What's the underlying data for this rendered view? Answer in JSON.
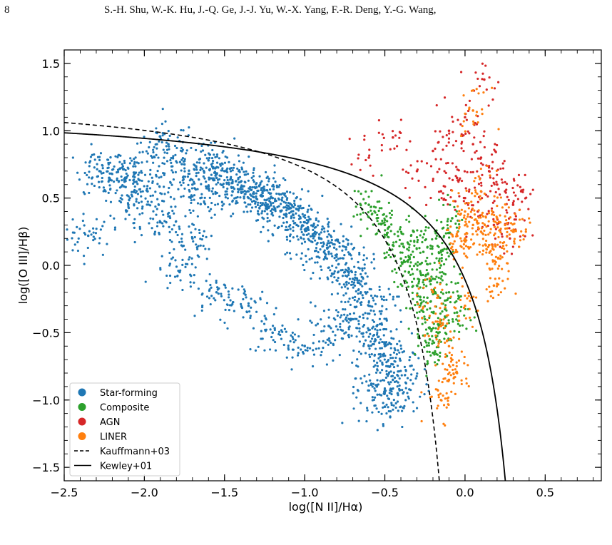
{
  "page": {
    "page_number": "8",
    "running_head": "S.-H. Shu, W.-K. Hu, J.-Q. Ge, J.-J. Yu, W.-X. Yang, F.-R. Deng, Y.-G. Wang,"
  },
  "chart_data": {
    "type": "scatter",
    "title": "",
    "xlabel": "log([N II]/Hα)",
    "ylabel": "log([O III]/Hβ)",
    "xlim": [
      -2.5,
      0.85
    ],
    "ylim": [
      -1.6,
      1.6
    ],
    "xticks": [
      -2.5,
      -2.0,
      -1.5,
      -1.0,
      -0.5,
      0.0,
      0.5
    ],
    "xtick_labels": [
      "−2.5",
      "−2.0",
      "−1.5",
      "−1.0",
      "−0.5",
      "0.0",
      "0.5"
    ],
    "yticks": [
      -1.5,
      -1.0,
      -0.5,
      0.0,
      0.5,
      1.0,
      1.5
    ],
    "ytick_labels": [
      "−1.5",
      "−1.0",
      "−0.5",
      "0.0",
      "0.5",
      "1.0",
      "1.5"
    ],
    "grid": false,
    "legend_position": "lower-left",
    "series": [
      {
        "name": "Star-forming",
        "kind": "scatter",
        "color": "#1f77b4",
        "points": [
          [
            -2.35,
            0.22
          ],
          [
            -2.28,
            0.7
          ],
          [
            -2.22,
            0.65
          ],
          [
            -2.15,
            0.72
          ],
          [
            -2.1,
            0.45
          ],
          [
            -2.05,
            0.62
          ],
          [
            -1.98,
            0.55
          ],
          [
            -1.95,
            0.8
          ],
          [
            -1.9,
            0.32
          ],
          [
            -1.85,
            0.9
          ],
          [
            -1.78,
            -0.05
          ],
          [
            -1.75,
            0.75
          ],
          [
            -1.7,
            0.6
          ],
          [
            -1.65,
            0.5
          ],
          [
            -1.6,
            0.78
          ],
          [
            -1.55,
            0.65
          ],
          [
            -1.5,
            0.7
          ],
          [
            -1.45,
            0.55
          ],
          [
            -1.4,
            0.62
          ],
          [
            -1.35,
            0.5
          ],
          [
            -1.3,
            0.58
          ],
          [
            -1.25,
            0.45
          ],
          [
            -1.2,
            0.5
          ],
          [
            -1.15,
            0.4
          ],
          [
            -1.1,
            0.42
          ],
          [
            -1.05,
            0.3
          ],
          [
            -1.0,
            0.32
          ],
          [
            -0.95,
            0.22
          ],
          [
            -0.9,
            0.2
          ],
          [
            -0.85,
            0.1
          ],
          [
            -0.8,
            0.08
          ],
          [
            -0.75,
            -0.05
          ],
          [
            -0.7,
            -0.1
          ],
          [
            -0.65,
            -0.2
          ],
          [
            -0.6,
            -0.3
          ],
          [
            -0.55,
            -0.45
          ],
          [
            -0.5,
            -0.6
          ],
          [
            -0.48,
            -0.75
          ],
          [
            -0.45,
            -0.85
          ],
          [
            -0.42,
            -0.95
          ],
          [
            -0.5,
            -1.05
          ],
          [
            -0.55,
            -0.9
          ],
          [
            -1.7,
            0.2
          ],
          [
            -1.55,
            -0.2
          ],
          [
            -1.35,
            -0.3
          ],
          [
            -1.2,
            -0.5
          ],
          [
            -1.0,
            -0.6
          ],
          [
            -0.85,
            -0.45
          ],
          [
            -0.7,
            -0.4
          ],
          [
            -0.6,
            -0.6
          ]
        ]
      },
      {
        "name": "Composite",
        "kind": "scatter",
        "color": "#2ca02c",
        "points": [
          [
            -0.6,
            0.45
          ],
          [
            -0.55,
            0.35
          ],
          [
            -0.5,
            0.3
          ],
          [
            -0.45,
            0.15
          ],
          [
            -0.4,
            0.05
          ],
          [
            -0.35,
            -0.05
          ],
          [
            -0.3,
            -0.15
          ],
          [
            -0.28,
            -0.3
          ],
          [
            -0.25,
            -0.4
          ],
          [
            -0.22,
            -0.55
          ],
          [
            -0.2,
            -0.65
          ],
          [
            -0.18,
            0.2
          ],
          [
            -0.15,
            0.0
          ],
          [
            -0.1,
            -0.2
          ],
          [
            -0.05,
            -0.35
          ],
          [
            -0.32,
            0.25
          ],
          [
            -0.26,
            0.1
          ],
          [
            -0.2,
            -0.1
          ],
          [
            -0.12,
            -0.45
          ],
          [
            -0.08,
            0.35
          ]
        ]
      },
      {
        "name": "AGN",
        "kind": "scatter",
        "color": "#d62728",
        "points": [
          [
            -0.6,
            0.8
          ],
          [
            -0.45,
            0.95
          ],
          [
            -0.3,
            0.7
          ],
          [
            -0.2,
            0.85
          ],
          [
            -0.1,
            1.0
          ],
          [
            0.0,
            1.1
          ],
          [
            0.05,
            0.9
          ],
          [
            0.1,
            0.8
          ],
          [
            0.12,
            1.38
          ],
          [
            0.15,
            0.7
          ],
          [
            0.2,
            0.6
          ],
          [
            0.25,
            0.55
          ],
          [
            0.3,
            0.45
          ],
          [
            -0.05,
            0.65
          ],
          [
            0.0,
            0.5
          ],
          [
            0.08,
            0.4
          ],
          [
            0.18,
            0.3
          ],
          [
            0.28,
            0.2
          ],
          [
            -0.15,
            0.55
          ],
          [
            0.35,
            0.55
          ]
        ]
      },
      {
        "name": "LINER",
        "kind": "scatter",
        "color": "#ff7f0e",
        "points": [
          [
            -0.2,
            -0.2
          ],
          [
            -0.15,
            -0.45
          ],
          [
            -0.1,
            -0.6
          ],
          [
            -0.05,
            -0.8
          ],
          [
            0.0,
            -0.3
          ],
          [
            -0.05,
            0.1
          ],
          [
            0.0,
            0.2
          ],
          [
            0.05,
            0.3
          ],
          [
            0.1,
            0.25
          ],
          [
            0.15,
            0.15
          ],
          [
            0.2,
            0.35
          ],
          [
            0.25,
            0.3
          ],
          [
            0.05,
            1.15
          ],
          [
            0.1,
            0.55
          ],
          [
            0.0,
            0.4
          ],
          [
            -0.1,
            -0.85
          ],
          [
            -0.15,
            -1.0
          ],
          [
            0.18,
            -0.15
          ],
          [
            0.22,
            0.05
          ],
          [
            0.3,
            0.25
          ]
        ]
      },
      {
        "name": "Kauffmann+03",
        "kind": "curve",
        "style": "dashed",
        "color": "#000000",
        "equation": "y = 0.61/(x - 0.05) + 1.3"
      },
      {
        "name": "Kewley+01",
        "kind": "curve",
        "style": "solid",
        "color": "#000000",
        "equation": "y = 0.61/(x - 0.47) + 1.19"
      }
    ]
  }
}
